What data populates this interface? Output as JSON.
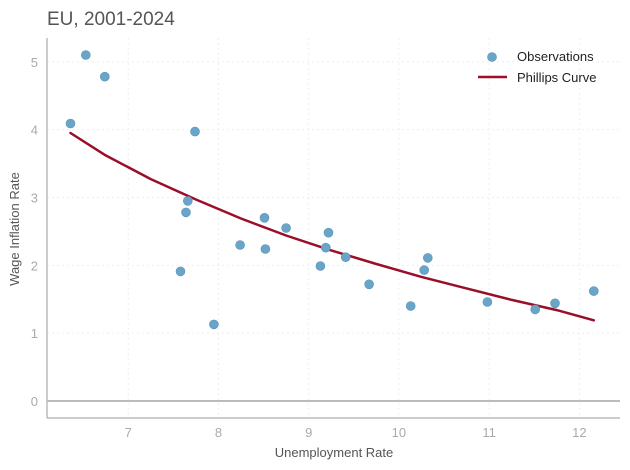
{
  "chart_data": {
    "type": "scatter",
    "title": "EU, 2001-2024",
    "xlabel": "Unemployment Rate",
    "ylabel": "Wage Inflation Rate",
    "xlim": [
      6.1,
      12.45
    ],
    "ylim": [
      -0.25,
      5.35
    ],
    "xticks": [
      7,
      8,
      9,
      10,
      11,
      12
    ],
    "yticks": [
      0,
      1,
      2,
      3,
      4,
      5
    ],
    "grid": true,
    "legend_position": "top-right",
    "colors": {
      "observations": "#6aa5c9",
      "curve": "#9b0e2a",
      "zero_line": "#bbbbbb",
      "axis": "#bbbbbb"
    },
    "series": [
      {
        "name": "Observations",
        "kind": "scatter",
        "x": [
          6.36,
          6.53,
          6.74,
          7.74,
          7.66,
          7.64,
          7.58,
          7.95,
          8.24,
          8.51,
          8.52,
          8.75,
          9.13,
          9.19,
          9.22,
          9.41,
          9.67,
          10.13,
          10.28,
          10.32,
          10.98,
          11.51,
          11.73,
          12.16
        ],
        "y": [
          4.09,
          5.1,
          4.78,
          3.97,
          2.95,
          2.78,
          1.91,
          1.13,
          2.3,
          2.7,
          2.24,
          2.55,
          1.99,
          2.26,
          2.48,
          2.12,
          1.72,
          1.4,
          1.93,
          2.11,
          1.46,
          1.35,
          1.44,
          1.62
        ]
      },
      {
        "name": "Phillips Curve",
        "kind": "line",
        "x": [
          6.36,
          6.75,
          7.25,
          7.75,
          8.25,
          8.75,
          9.25,
          9.75,
          10.25,
          10.75,
          11.25,
          11.75,
          12.16
        ],
        "y": [
          3.95,
          3.62,
          3.27,
          2.97,
          2.69,
          2.44,
          2.22,
          2.02,
          1.83,
          1.66,
          1.49,
          1.34,
          1.19
        ]
      }
    ]
  }
}
